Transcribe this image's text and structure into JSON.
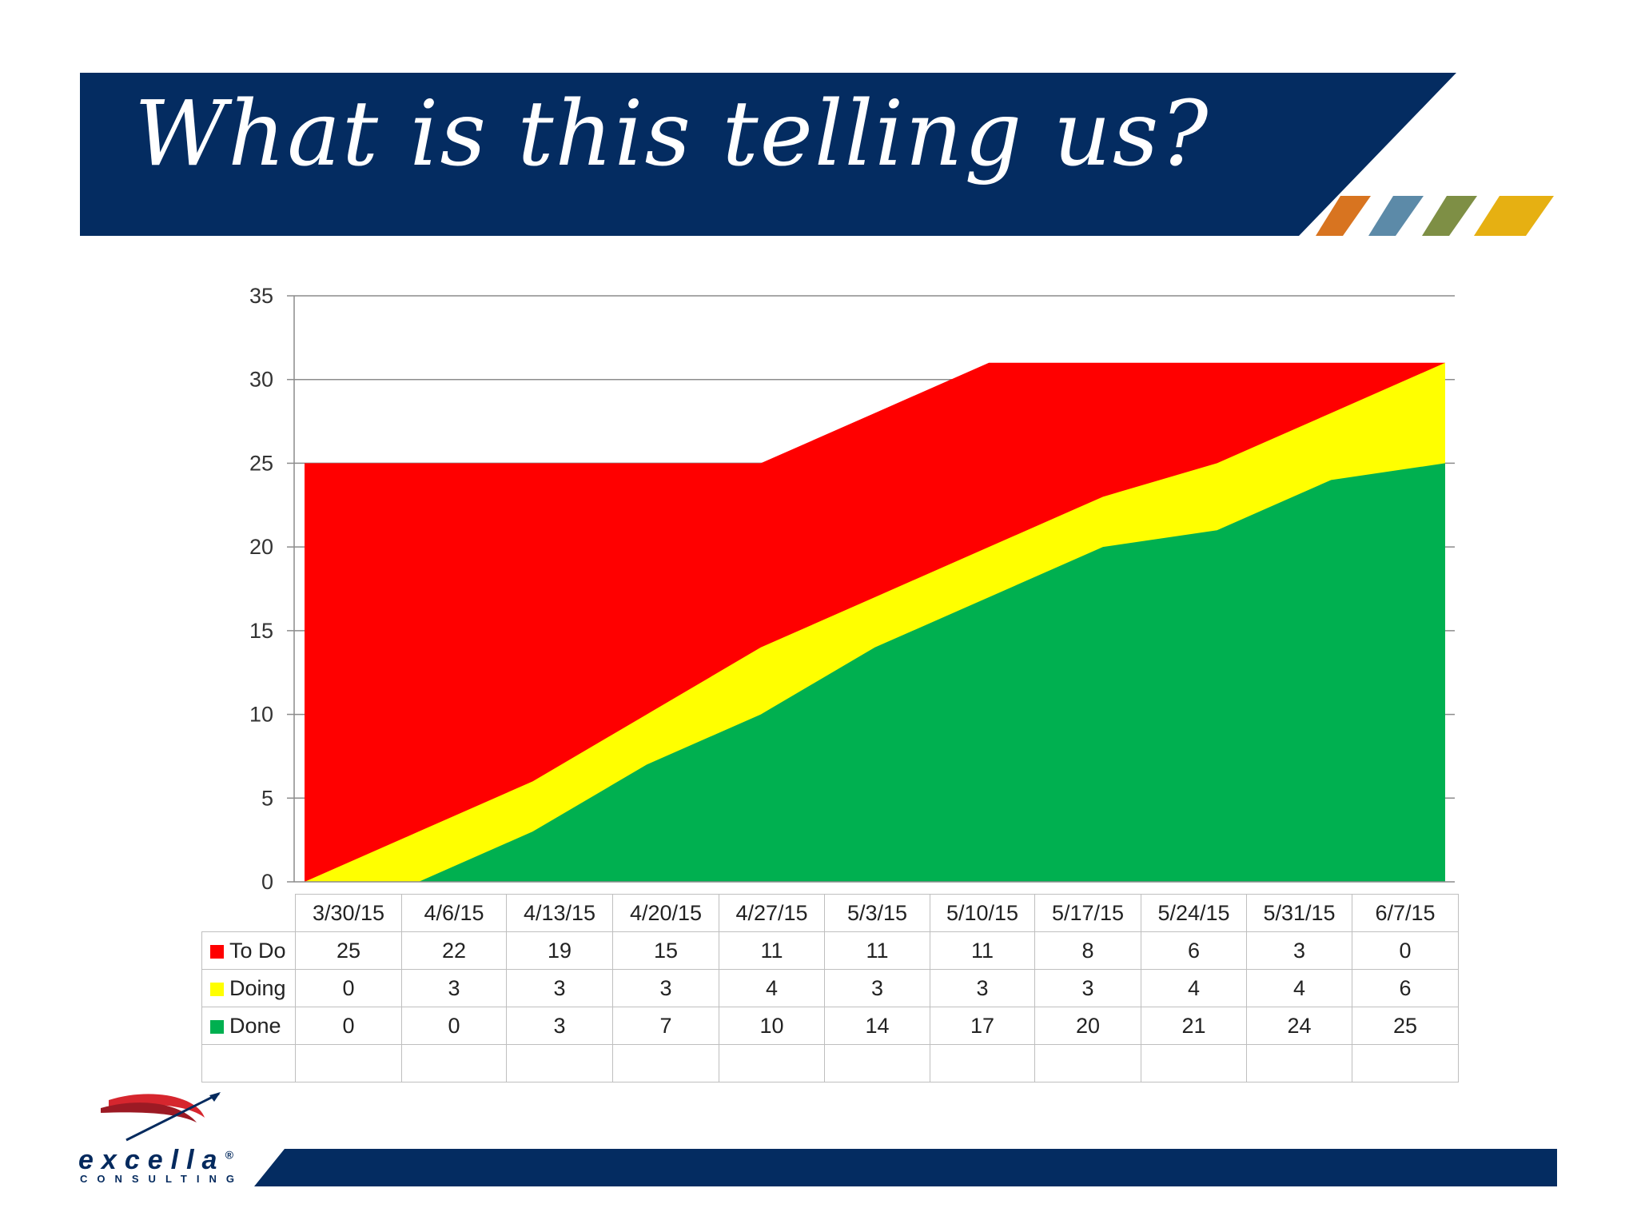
{
  "title": "What is this telling us?",
  "colors": {
    "banner": "#042c61",
    "stripes": [
      "#d87420",
      "#5c8aa8",
      "#7e8f45",
      "#e6b012"
    ],
    "todo": "#ff0000",
    "doing": "#ffff00",
    "done": "#00b050"
  },
  "chart_data": {
    "type": "area",
    "stacked": true,
    "categories": [
      "3/30/15",
      "4/6/15",
      "4/13/15",
      "4/20/15",
      "4/27/15",
      "5/3/15",
      "5/10/15",
      "5/17/15",
      "5/24/15",
      "5/31/15",
      "6/7/15"
    ],
    "series": [
      {
        "name": "To Do",
        "values": [
          25,
          22,
          19,
          15,
          11,
          11,
          11,
          8,
          6,
          3,
          0
        ],
        "color": "#ff0000"
      },
      {
        "name": "Doing",
        "values": [
          0,
          3,
          3,
          3,
          4,
          3,
          3,
          3,
          4,
          4,
          6
        ],
        "color": "#ffff00"
      },
      {
        "name": "Done",
        "values": [
          0,
          0,
          3,
          7,
          10,
          14,
          17,
          20,
          21,
          24,
          25
        ],
        "color": "#00b050"
      }
    ],
    "ylim": [
      0,
      35
    ],
    "yticks": [
      0,
      5,
      10,
      15,
      20,
      25,
      30,
      35
    ],
    "grid": true,
    "legend": "data table below chart"
  },
  "logo": {
    "name": "excella",
    "registered": "®",
    "subtitle": "CONSULTING"
  }
}
